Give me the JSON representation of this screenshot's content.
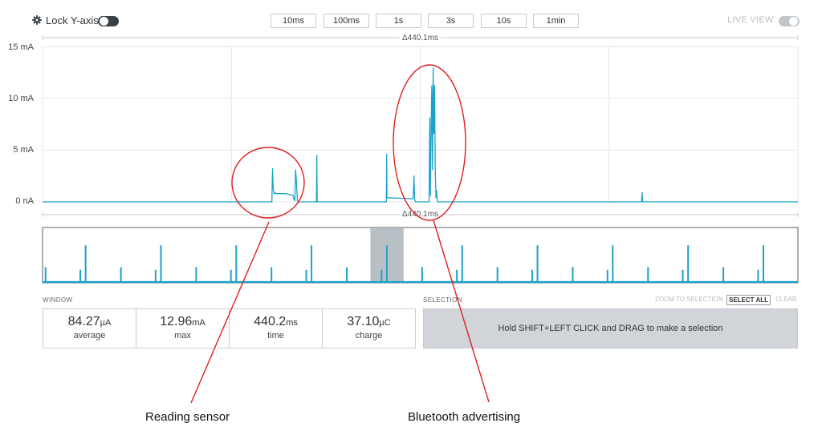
{
  "toolbar": {
    "lock_label": "Lock Y-axis",
    "lock_on": false,
    "zoom_buttons": [
      "10ms",
      "100ms",
      "1s",
      "3s",
      "10s",
      "1min"
    ],
    "live_label": "LIVE VIEW",
    "live_on": false
  },
  "chart": {
    "window_label": "Δ440.1ms",
    "y_labels": [
      "15 mA",
      "10 mA",
      "5 mA",
      "0 nA"
    ],
    "trace_color": "#1ba2c9"
  },
  "chart_data": {
    "type": "line",
    "xlabel": "",
    "ylabel": "",
    "x_unit": "ms",
    "xlim": [
      0,
      440.1
    ],
    "ylim": [
      0,
      15
    ],
    "y_unit": "mA",
    "grid": true,
    "series": [
      {
        "x": [
          0,
          133.6,
          134.0,
          134.4,
          135.0,
          135.4,
          136.0,
          138.0,
          140.0,
          142.0,
          144.0,
          146.0,
          146.5,
          147.0,
          147.4,
          147.9,
          148.5,
          149.0,
          159.6,
          159.8,
          160.0,
          200.3,
          200.5,
          200.7,
          216.0,
          216.4,
          216.8,
          217.2,
          217.6,
          218.0,
          218.4,
          218.8,
          225.2,
          225.6,
          226.0,
          226.4,
          226.8,
          227.2,
          227.6,
          228.0,
          228.4,
          228.8,
          229.2,
          229.6,
          230.0,
          230.4,
          349.0,
          349.3,
          349.6,
          440.1
        ],
        "y": [
          0,
          0,
          3.2,
          1.2,
          0.8,
          0.9,
          0.8,
          0.8,
          0.8,
          0.8,
          0.7,
          0.6,
          0.3,
          0.1,
          3.1,
          2.1,
          0.1,
          0,
          0,
          4.5,
          0,
          0,
          4.6,
          0.4,
          0.3,
          2.5,
          0.2,
          0,
          0,
          0,
          0,
          0,
          0,
          8.1,
          0.6,
          7.4,
          11.2,
          3.1,
          12.9,
          6.6,
          11.2,
          3.2,
          0.4,
          1.1,
          0.1,
          0,
          0,
          0.9,
          0,
          0
        ]
      }
    ]
  },
  "overview": {
    "highlight": [
      0.434,
      0.478
    ]
  },
  "window": {
    "title": "WINDOW",
    "stats": [
      {
        "value": "84.27",
        "unit": "µA",
        "label": "average"
      },
      {
        "value": "12.96",
        "unit": "mA",
        "label": "max"
      },
      {
        "value": "440.2",
        "unit": "ms",
        "label": "time"
      },
      {
        "value": "37.10",
        "unit": "µC",
        "label": "charge"
      }
    ]
  },
  "selection": {
    "title": "SELECTION",
    "zoom_label": "ZOOM TO SELECTION",
    "select_all_label": "SELECT ALL",
    "clear_label": "CLEAR",
    "hint": "Hold SHIFT+LEFT CLICK and DRAG to make a selection"
  },
  "annotations": {
    "sensor_label": "Reading sensor",
    "bluetooth_label": "Bluetooth advertising",
    "color": "#e02020"
  }
}
